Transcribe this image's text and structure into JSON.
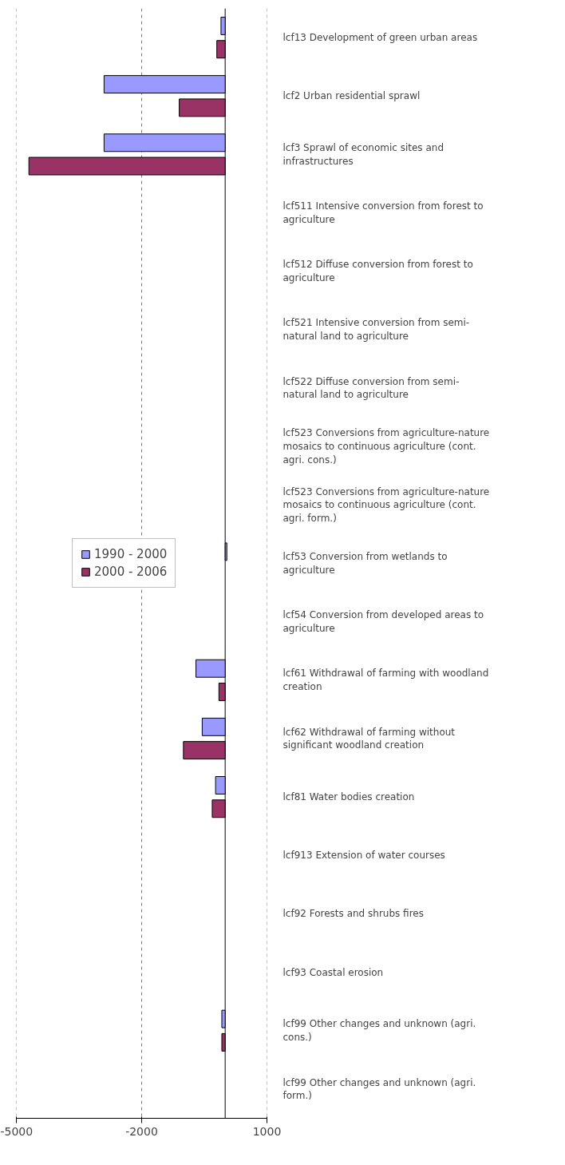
{
  "chart_data": {
    "type": "bar",
    "orientation": "horizontal",
    "categories": [
      "lcf13 Development of green urban areas",
      "lcf2 Urban residential sprawl",
      "lcf3 Sprawl of economic sites and infrastructures",
      "lcf511 Intensive conversion from forest to agriculture",
      "lcf512 Diffuse conversion from forest to agriculture",
      "lcf521 Intensive conversion from semi-natural land to agriculture",
      "lcf522 Diffuse conversion from semi-natural land to agriculture",
      "lcf523 Conversions from agriculture-nature mosaics to continuous agriculture (cont. agri. cons.)",
      "lcf523 Conversions from agriculture-nature mosaics to continuous agriculture (cont. agri. form.)",
      "lcf53 Conversion from wetlands to agriculture",
      "lcf54 Conversion from developed areas to agriculture",
      "lcf61 Withdrawal of farming with woodland creation",
      "lcf62 Withdrawal of farming without significant woodland creation",
      "lcf81 Water bodies creation",
      "lcf913 Extension of water courses",
      "lcf92 Forests and shrubs fires",
      "lcf93 Coastal erosion",
      "lcf99 Other changes and unknown (agri. cons.)",
      "lcf99 Other changes and unknown (agri. form.)"
    ],
    "series": [
      {
        "name": "1990 - 2000",
        "color": "#9999ff",
        "values": [
          -100,
          -2900,
          -2900,
          null,
          null,
          null,
          null,
          null,
          null,
          40,
          null,
          -700,
          -550,
          -230,
          null,
          null,
          null,
          -80,
          null
        ]
      },
      {
        "name": "2000 - 2006",
        "color": "#993366",
        "values": [
          -200,
          -1100,
          -4700,
          null,
          null,
          null,
          null,
          null,
          null,
          null,
          null,
          -150,
          -1000,
          -310,
          null,
          null,
          null,
          -80,
          null
        ]
      }
    ],
    "xlim": [
      -5000,
      1000
    ],
    "xticks": [
      -5000,
      -2000,
      1000
    ],
    "grid": "x",
    "legend": "left"
  }
}
